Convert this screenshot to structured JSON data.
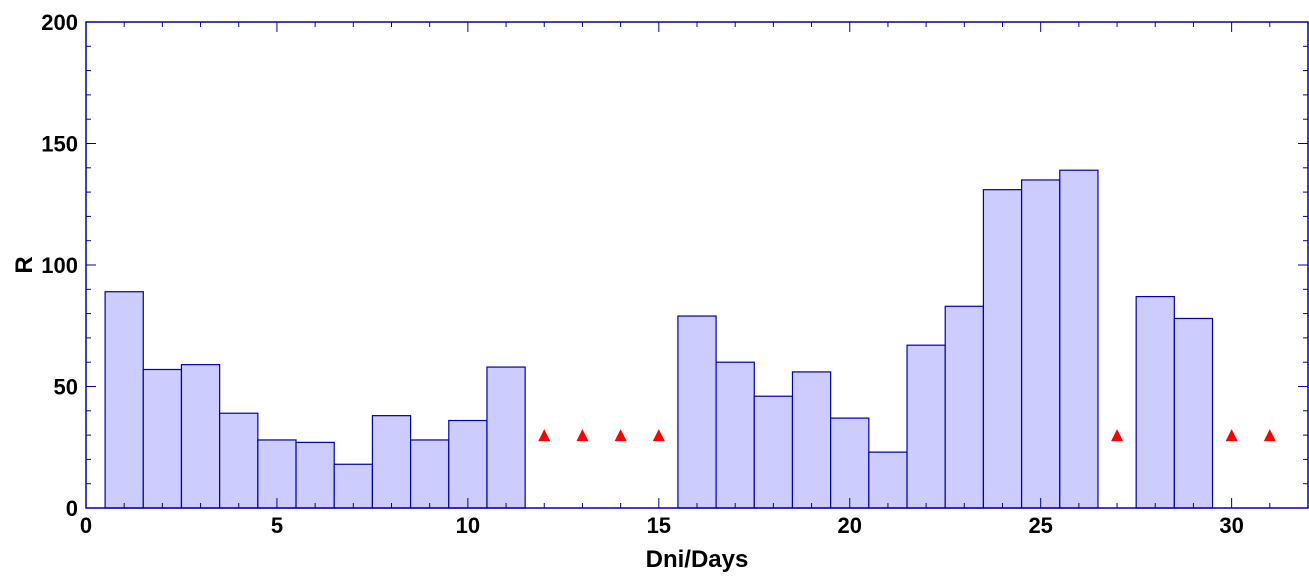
{
  "chart_data": {
    "type": "bar",
    "title": "",
    "xlabel": "Dni/Days",
    "ylabel": "R",
    "xlim": [
      0,
      32
    ],
    "ylim": [
      0,
      200
    ],
    "x_ticks": [
      0,
      5,
      10,
      15,
      20,
      25,
      30
    ],
    "y_ticks": [
      0,
      50,
      100,
      150,
      200
    ],
    "grid": false,
    "bars": {
      "x": [
        1,
        2,
        3,
        4,
        5,
        6,
        7,
        8,
        9,
        10,
        11,
        16,
        17,
        18,
        19,
        20,
        21,
        22,
        23,
        24,
        25,
        26,
        28,
        29
      ],
      "values": [
        89,
        57,
        59,
        39,
        28,
        27,
        18,
        38,
        28,
        36,
        58,
        79,
        60,
        46,
        56,
        37,
        23,
        67,
        83,
        131,
        135,
        139,
        87,
        78
      ],
      "color": "#ccccff",
      "edge_color": "#0000aa"
    },
    "markers": {
      "shape": "triangle",
      "color": "#ff0000",
      "x": [
        12,
        13,
        14,
        15,
        27,
        30,
        31
      ],
      "y": [
        30,
        30,
        30,
        30,
        30,
        30,
        30
      ]
    }
  }
}
